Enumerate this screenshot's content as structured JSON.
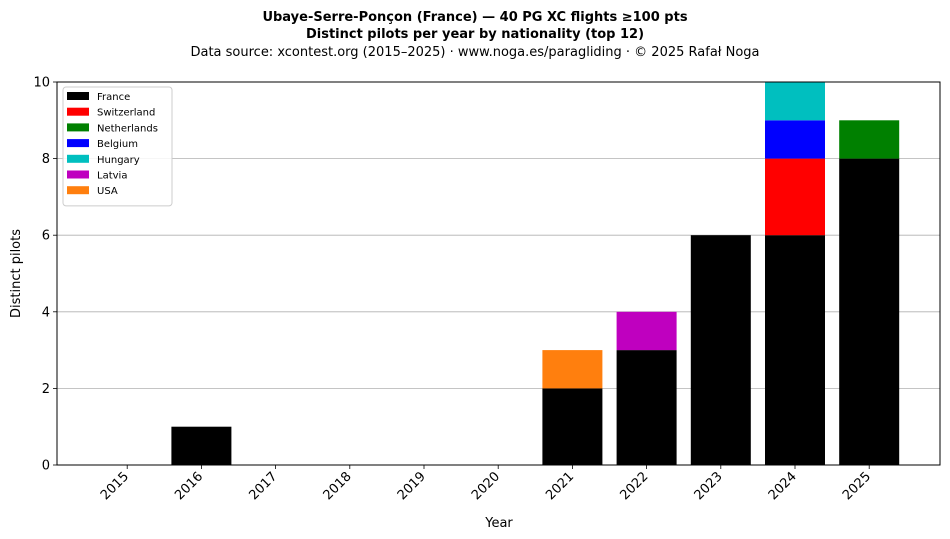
{
  "chart_data": {
    "type": "bar",
    "stacked": true,
    "title": "Ubaye-Serre-Ponçon (France)  —  40 PG XC flights ≥100 pts",
    "subtitle": "Distinct pilots per year by nationality (top 12)",
    "source": "Data source: xcontest.org (2015–2025)  ·  www.noga.es/paragliding  ·  © 2025 Rafał Noga",
    "xlabel": "Year",
    "ylabel": "Distinct pilots",
    "ylim": [
      0,
      10
    ],
    "yticks": [
      "0",
      "2",
      "4",
      "6",
      "8",
      "10"
    ],
    "grid": "y",
    "legend_position": "top-left",
    "categories": [
      "2015",
      "2016",
      "2017",
      "2018",
      "2019",
      "2020",
      "2021",
      "2022",
      "2023",
      "2024",
      "2025"
    ],
    "series": [
      {
        "name": "France",
        "color": "#000000",
        "values": [
          0,
          1,
          0,
          0,
          0,
          0,
          2,
          3,
          6,
          6,
          8
        ]
      },
      {
        "name": "Switzerland",
        "color": "#ff0000",
        "values": [
          0,
          0,
          0,
          0,
          0,
          0,
          0,
          0,
          0,
          2,
          0
        ]
      },
      {
        "name": "Netherlands",
        "color": "#008000",
        "values": [
          0,
          0,
          0,
          0,
          0,
          0,
          0,
          0,
          0,
          0,
          1
        ]
      },
      {
        "name": "Belgium",
        "color": "#0000ff",
        "values": [
          0,
          0,
          0,
          0,
          0,
          0,
          0,
          0,
          0,
          1,
          0
        ]
      },
      {
        "name": "Hungary",
        "color": "#00bfbf",
        "values": [
          0,
          0,
          0,
          0,
          0,
          0,
          0,
          0,
          0,
          1,
          0
        ]
      },
      {
        "name": "Latvia",
        "color": "#bf00bf",
        "values": [
          0,
          0,
          0,
          0,
          0,
          0,
          0,
          1,
          0,
          0,
          0
        ]
      },
      {
        "name": "USA",
        "color": "#ff7f0e",
        "values": [
          0,
          0,
          0,
          0,
          0,
          0,
          1,
          0,
          0,
          0,
          0
        ]
      }
    ]
  }
}
